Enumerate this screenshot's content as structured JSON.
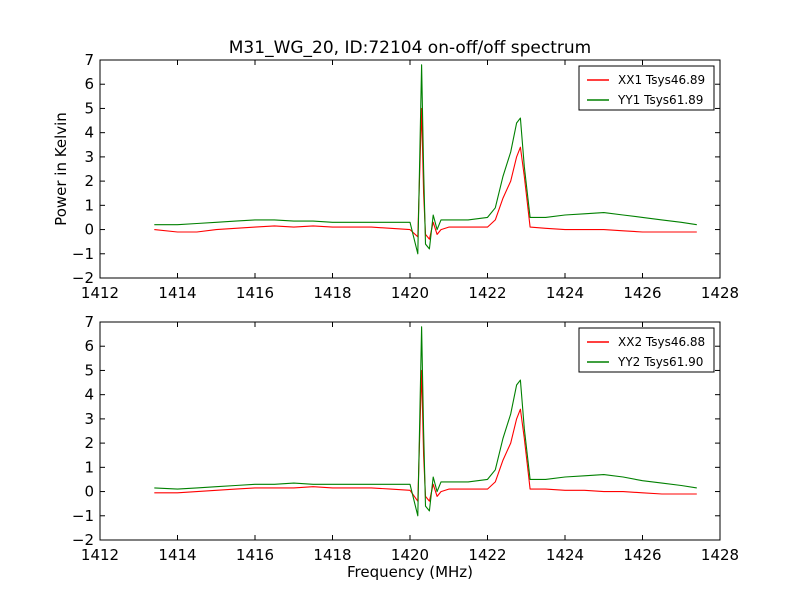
{
  "title": "M31_WG_20, ID:72104 on-off/off spectrum",
  "chart_data": [
    {
      "type": "line",
      "title": "M31_WG_20, ID:72104 on-off/off spectrum",
      "xlabel": "",
      "ylabel": "Power in Kelvin",
      "xlim": [
        1412,
        1428
      ],
      "ylim": [
        -2,
        7
      ],
      "xticks": [
        1412,
        1414,
        1416,
        1418,
        1420,
        1422,
        1424,
        1426,
        1428
      ],
      "xtick_labels": [
        "1412",
        "1414",
        "1416",
        "1418",
        "1420",
        "1422",
        "1424",
        "1426",
        "1428"
      ],
      "yticks": [
        -2,
        -1,
        0,
        1,
        2,
        3,
        4,
        5,
        6,
        7
      ],
      "ytick_labels": [
        "−2",
        "−1",
        "0",
        "1",
        "2",
        "3",
        "4",
        "5",
        "6",
        "7"
      ],
      "grid": false,
      "legend_position": "top-right",
      "series": [
        {
          "name": "XX1 Tsys46.89",
          "color": "#ff0000",
          "x": [
            1413.4,
            1414.0,
            1414.5,
            1415.0,
            1415.5,
            1416.0,
            1416.5,
            1417.0,
            1417.5,
            1418.0,
            1418.5,
            1419.0,
            1419.5,
            1420.0,
            1420.2,
            1420.3,
            1420.35,
            1420.4,
            1420.5,
            1420.6,
            1420.7,
            1420.8,
            1421.0,
            1421.5,
            1422.0,
            1422.2,
            1422.4,
            1422.6,
            1422.75,
            1422.85,
            1422.95,
            1423.1,
            1423.5,
            1424.0,
            1424.5,
            1425.0,
            1425.5,
            1426.0,
            1426.5,
            1427.0,
            1427.4
          ],
          "values": [
            0.0,
            -0.1,
            -0.1,
            0.0,
            0.05,
            0.1,
            0.15,
            0.1,
            0.15,
            0.1,
            0.1,
            0.1,
            0.05,
            0.0,
            -0.3,
            5.0,
            1.5,
            -0.2,
            -0.4,
            0.3,
            -0.2,
            0.0,
            0.1,
            0.1,
            0.1,
            0.4,
            1.3,
            2.0,
            3.0,
            3.4,
            2.2,
            0.1,
            0.05,
            0.0,
            0.0,
            0.0,
            -0.05,
            -0.1,
            -0.1,
            -0.1,
            -0.1
          ]
        },
        {
          "name": "YY1 Tsys61.89",
          "color": "#008000",
          "x": [
            1413.4,
            1414.0,
            1414.5,
            1415.0,
            1415.5,
            1416.0,
            1416.5,
            1417.0,
            1417.5,
            1418.0,
            1418.5,
            1419.0,
            1419.5,
            1420.0,
            1420.2,
            1420.3,
            1420.35,
            1420.4,
            1420.5,
            1420.6,
            1420.7,
            1420.8,
            1421.0,
            1421.5,
            1422.0,
            1422.2,
            1422.4,
            1422.6,
            1422.75,
            1422.85,
            1422.95,
            1423.1,
            1423.5,
            1424.0,
            1424.5,
            1425.0,
            1425.5,
            1426.0,
            1426.5,
            1427.0,
            1427.4
          ],
          "values": [
            0.2,
            0.2,
            0.25,
            0.3,
            0.35,
            0.4,
            0.4,
            0.35,
            0.35,
            0.3,
            0.3,
            0.3,
            0.3,
            0.3,
            -1.0,
            6.8,
            2.5,
            -0.6,
            -0.8,
            0.6,
            0.0,
            0.4,
            0.4,
            0.4,
            0.5,
            0.9,
            2.2,
            3.2,
            4.4,
            4.6,
            2.6,
            0.5,
            0.5,
            0.6,
            0.65,
            0.7,
            0.6,
            0.5,
            0.4,
            0.3,
            0.2
          ]
        }
      ]
    },
    {
      "type": "line",
      "title": "",
      "xlabel": "Frequency (MHz)",
      "ylabel": "",
      "xlim": [
        1412,
        1428
      ],
      "ylim": [
        -2,
        7
      ],
      "xticks": [
        1412,
        1414,
        1416,
        1418,
        1420,
        1422,
        1424,
        1426,
        1428
      ],
      "xtick_labels": [
        "1412",
        "1414",
        "1416",
        "1418",
        "1420",
        "1422",
        "1424",
        "1426",
        "1428"
      ],
      "yticks": [
        -2,
        -1,
        0,
        1,
        2,
        3,
        4,
        5,
        6,
        7
      ],
      "ytick_labels": [
        "−2",
        "−1",
        "0",
        "1",
        "2",
        "3",
        "4",
        "5",
        "6",
        "7"
      ],
      "grid": false,
      "legend_position": "top-right",
      "series": [
        {
          "name": "XX2 Tsys46.88",
          "color": "#ff0000",
          "x": [
            1413.4,
            1414.0,
            1414.5,
            1415.0,
            1415.5,
            1416.0,
            1416.5,
            1417.0,
            1417.5,
            1418.0,
            1418.5,
            1419.0,
            1419.5,
            1420.0,
            1420.2,
            1420.3,
            1420.35,
            1420.4,
            1420.5,
            1420.6,
            1420.7,
            1420.8,
            1421.0,
            1421.5,
            1422.0,
            1422.2,
            1422.4,
            1422.6,
            1422.75,
            1422.85,
            1422.95,
            1423.1,
            1423.5,
            1424.0,
            1424.5,
            1425.0,
            1425.5,
            1426.0,
            1426.5,
            1427.0,
            1427.4
          ],
          "values": [
            -0.05,
            -0.05,
            0.0,
            0.05,
            0.1,
            0.15,
            0.15,
            0.15,
            0.2,
            0.15,
            0.15,
            0.15,
            0.1,
            0.05,
            -0.4,
            5.0,
            1.5,
            -0.2,
            -0.4,
            0.3,
            -0.2,
            0.0,
            0.1,
            0.1,
            0.1,
            0.4,
            1.3,
            2.0,
            3.0,
            3.4,
            2.2,
            0.1,
            0.1,
            0.05,
            0.05,
            0.0,
            0.0,
            -0.05,
            -0.1,
            -0.1,
            -0.1
          ]
        },
        {
          "name": "YY2 Tsys61.90",
          "color": "#008000",
          "x": [
            1413.4,
            1414.0,
            1414.5,
            1415.0,
            1415.5,
            1416.0,
            1416.5,
            1417.0,
            1417.5,
            1418.0,
            1418.5,
            1419.0,
            1419.5,
            1420.0,
            1420.2,
            1420.3,
            1420.35,
            1420.4,
            1420.5,
            1420.6,
            1420.7,
            1420.8,
            1421.0,
            1421.5,
            1422.0,
            1422.2,
            1422.4,
            1422.6,
            1422.75,
            1422.85,
            1422.95,
            1423.1,
            1423.5,
            1424.0,
            1424.5,
            1425.0,
            1425.5,
            1426.0,
            1426.5,
            1427.0,
            1427.4
          ],
          "values": [
            0.15,
            0.1,
            0.15,
            0.2,
            0.25,
            0.3,
            0.3,
            0.35,
            0.3,
            0.3,
            0.3,
            0.3,
            0.3,
            0.3,
            -1.0,
            6.8,
            2.5,
            -0.6,
            -0.8,
            0.6,
            0.0,
            0.4,
            0.4,
            0.4,
            0.5,
            0.9,
            2.2,
            3.2,
            4.4,
            4.6,
            2.6,
            0.5,
            0.5,
            0.6,
            0.65,
            0.7,
            0.6,
            0.45,
            0.35,
            0.25,
            0.15
          ]
        }
      ]
    }
  ]
}
